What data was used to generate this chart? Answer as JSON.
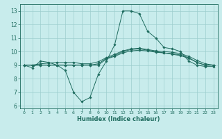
{
  "xlabel": "Humidex (Indice chaleur)",
  "ylabel": "",
  "bg_color": "#c8ecec",
  "grid_color": "#9ecece",
  "line_color": "#1e6b5e",
  "xlim": [
    -0.5,
    23.5
  ],
  "ylim": [
    5.8,
    13.5
  ],
  "yticks": [
    6,
    7,
    8,
    9,
    10,
    11,
    12,
    13
  ],
  "xticks": [
    0,
    1,
    2,
    3,
    4,
    5,
    6,
    7,
    8,
    9,
    10,
    11,
    12,
    13,
    14,
    15,
    16,
    17,
    18,
    19,
    20,
    21,
    22,
    23
  ],
  "lines": [
    {
      "x": [
        0,
        1,
        2,
        3,
        4,
        5,
        6,
        7,
        8,
        9,
        10,
        11,
        12,
        13,
        14,
        15,
        16,
        17,
        18,
        19,
        20,
        21,
        22,
        23
      ],
      "y": [
        9.0,
        8.8,
        9.3,
        9.2,
        9.0,
        8.6,
        7.0,
        6.3,
        6.6,
        8.3,
        9.3,
        10.5,
        13.0,
        13.0,
        12.8,
        11.5,
        11.0,
        10.3,
        10.2,
        10.0,
        9.3,
        9.0,
        8.9,
        8.9
      ]
    },
    {
      "x": [
        0,
        1,
        2,
        3,
        4,
        5,
        6,
        7,
        8,
        9,
        10,
        11,
        12,
        13,
        14,
        15,
        16,
        17,
        18,
        19,
        20,
        21,
        22,
        23
      ],
      "y": [
        9.0,
        9.0,
        9.0,
        9.0,
        9.0,
        9.0,
        9.0,
        9.0,
        9.0,
        9.1,
        9.5,
        9.7,
        10.0,
        10.15,
        10.2,
        10.1,
        10.0,
        9.9,
        9.8,
        9.7,
        9.5,
        9.2,
        9.0,
        9.0
      ]
    },
    {
      "x": [
        0,
        1,
        2,
        3,
        4,
        5,
        6,
        7,
        8,
        9,
        10,
        11,
        12,
        13,
        14,
        15,
        16,
        17,
        18,
        19,
        20,
        21,
        22,
        23
      ],
      "y": [
        9.0,
        9.0,
        9.1,
        9.15,
        9.2,
        9.2,
        9.2,
        9.1,
        9.1,
        9.25,
        9.55,
        9.8,
        10.05,
        10.2,
        10.25,
        10.15,
        10.05,
        10.0,
        9.95,
        9.85,
        9.65,
        9.35,
        9.1,
        9.0
      ]
    },
    {
      "x": [
        0,
        1,
        2,
        3,
        4,
        5,
        6,
        7,
        8,
        9,
        10,
        11,
        12,
        13,
        14,
        15,
        16,
        17,
        18,
        19,
        20,
        21,
        22,
        23
      ],
      "y": [
        9.0,
        9.0,
        9.0,
        9.0,
        9.0,
        9.0,
        9.0,
        9.0,
        9.0,
        9.0,
        9.45,
        9.65,
        9.9,
        10.05,
        10.1,
        10.05,
        9.95,
        9.9,
        9.85,
        9.75,
        9.55,
        9.2,
        9.0,
        9.0
      ]
    }
  ]
}
